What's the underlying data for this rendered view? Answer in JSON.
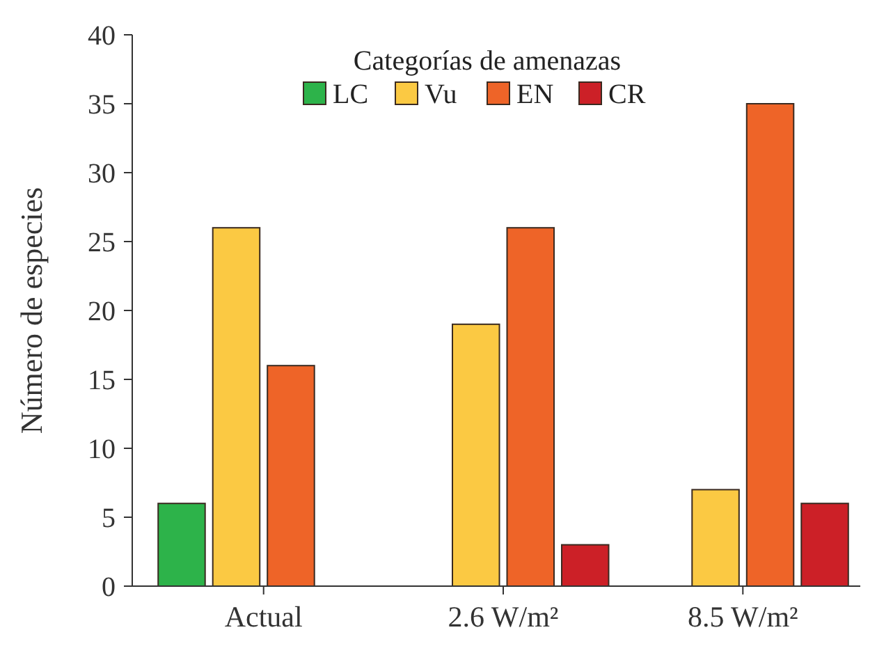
{
  "chart_data": {
    "type": "bar",
    "ylabel": "Número de especies",
    "legend_title": "Categorías de amenazas",
    "legend": "top",
    "categories": [
      "Actual",
      "2.6 W/m²",
      "8.5 W/m²"
    ],
    "series": [
      {
        "name": "LC",
        "color": "#2db34a",
        "values": [
          6,
          null,
          null
        ]
      },
      {
        "name": "Vu",
        "color": "#fbc943",
        "values": [
          26,
          19,
          7
        ]
      },
      {
        "name": "EN",
        "color": "#ee6428",
        "values": [
          16,
          26,
          35
        ]
      },
      {
        "name": "CR",
        "color": "#cc2027",
        "values": [
          null,
          3,
          6
        ]
      }
    ],
    "ylim": [
      0,
      40
    ],
    "yticks": [
      0,
      5,
      10,
      15,
      20,
      25,
      30,
      35,
      40
    ]
  }
}
